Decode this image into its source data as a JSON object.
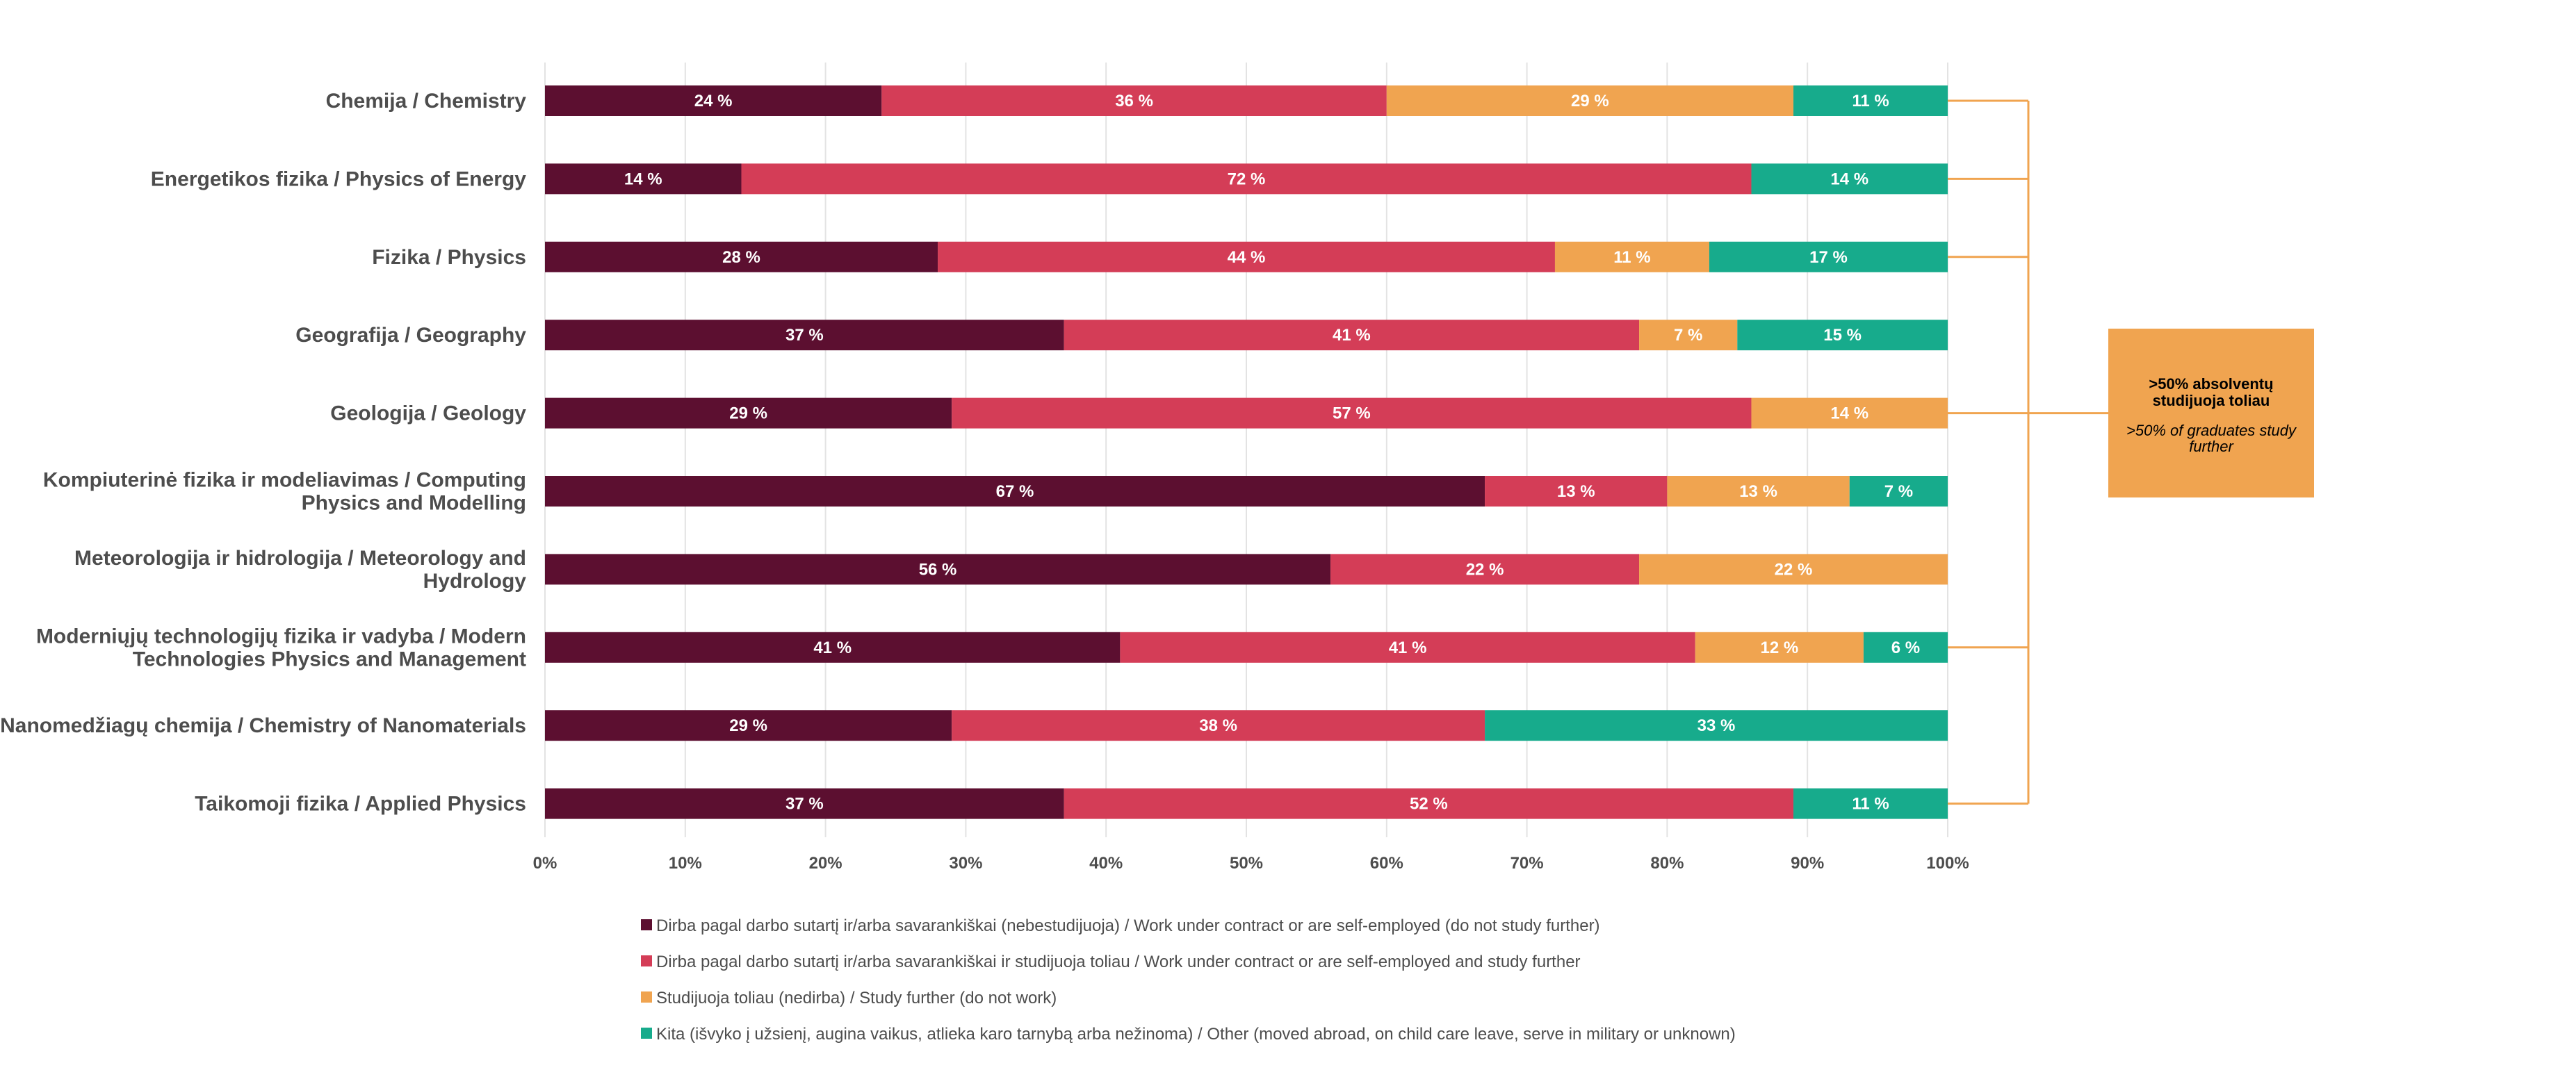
{
  "chart_data": {
    "type": "bar",
    "orientation": "horizontal",
    "stacked": true,
    "categories": [
      "Chemija / Chemistry",
      "Energetikos fizika / Physics of Energy",
      "Fizika / Physics",
      "Geografija / Geography",
      "Geologija / Geology",
      "Kompiuterinė fizika ir modeliavimas / Computing Physics and Modelling",
      "Meteorologija ir hidrologija / Meteorology and Hydrology",
      "Moderniųjų technologijų fizika ir vadyba / Modern Technologies Physics and Management",
      "Nanomedžiagų chemija / Chemistry of Nanomaterials",
      "Taikomoji fizika / Applied Physics"
    ],
    "category_lines": [
      [
        "Chemija / Chemistry"
      ],
      [
        "Energetikos fizika / Physics of Energy"
      ],
      [
        "Fizika / Physics"
      ],
      [
        "Geografija / Geography"
      ],
      [
        "Geologija / Geology"
      ],
      [
        "Kompiuterinė fizika ir modeliavimas / Computing",
        "Physics and Modelling"
      ],
      [
        "Meteorologija ir hidrologija / Meteorology and",
        "Hydrology"
      ],
      [
        "Moderniųjų technologijų fizika ir vadyba / Modern",
        "Technologies Physics and Management"
      ],
      [
        "Nanomedžiagų chemija / Chemistry of Nanomaterials"
      ],
      [
        "Taikomoji fizika / Applied Physics"
      ]
    ],
    "series": [
      {
        "name": "Dirba pagal darbo sutartį ir/arba savarankiškai (nebestudijuoja) / Work under contract or are self-employed (do not study further)",
        "color": "#5c0f30",
        "values": [
          24,
          14,
          28,
          37,
          29,
          67,
          56,
          41,
          29,
          37
        ]
      },
      {
        "name": "Dirba pagal darbo sutartį ir/arba savarankiškai  ir studijuoja toliau / Work under contract or are self-employed and study further",
        "color": "#d43d57",
        "values": [
          36,
          72,
          44,
          41,
          57,
          13,
          22,
          41,
          38,
          52
        ]
      },
      {
        "name": "Studijuoja toliau (nedirba) / Study further (do not work)",
        "color": "#f0a450",
        "values": [
          29,
          0,
          11,
          7,
          14,
          13,
          22,
          12,
          0,
          0
        ]
      },
      {
        "name": "Kita (išvyko į užsienį, augina vaikus, atlieka karo tarnybą arba nežinoma) / Other (moved abroad, on child care leave, serve in military or unknown)",
        "color": "#17ab8c",
        "values": [
          11,
          14,
          17,
          15,
          0,
          7,
          0,
          6,
          33,
          11
        ]
      }
    ],
    "xlim": [
      0,
      100
    ],
    "x_ticks": [
      "0%",
      "10%",
      "20%",
      "30%",
      "40%",
      "50%",
      "60%",
      "70%",
      "80%",
      "90%",
      "100%"
    ],
    "value_suffix": " %",
    "grid": true,
    "legend_position": "bottom",
    "annotation": {
      "line1": ">50% absolventų",
      "line2": "studijuoja toliau",
      "line3": ">50% of graduates study",
      "line4": "further",
      "color": "#f0a450",
      "bracketed_categories": [
        0,
        1,
        2,
        4,
        7,
        9
      ]
    }
  }
}
